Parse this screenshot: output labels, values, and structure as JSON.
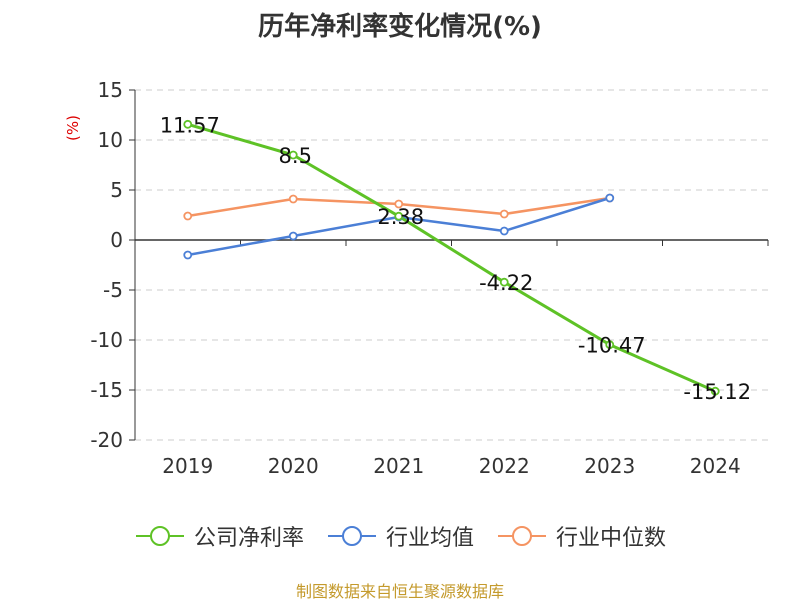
{
  "title": "历年净利率变化情况(%)",
  "source": "制图数据来自恒生聚源数据库",
  "colors": {
    "company": "#5ec226",
    "industry_avg": "#4b7fd6",
    "industry_median": "#f59462",
    "grid": "#cccccc",
    "axis": "#333333"
  },
  "chart_data": {
    "type": "line",
    "title": "历年净利率变化情况(%)",
    "ylabel": "(%)",
    "xlabel": "",
    "categories": [
      "2019",
      "2020",
      "2021",
      "2022",
      "2023",
      "2024"
    ],
    "ylim": [
      -20,
      15
    ],
    "yticks": [
      15,
      10,
      5,
      0,
      -5,
      -10,
      -15,
      -20
    ],
    "grid": true,
    "legend_position": "bottom",
    "series": [
      {
        "name": "公司净利率",
        "values": [
          11.57,
          8.5,
          2.38,
          -4.22,
          -10.47,
          -15.12
        ],
        "labels": [
          "11.57",
          "8.5",
          "2.38",
          "-4.22",
          "-10.47",
          "-15.12"
        ]
      },
      {
        "name": "行业均值",
        "values": [
          -1.5,
          0.4,
          2.3,
          0.9,
          4.2,
          null
        ]
      },
      {
        "name": "行业中位数",
        "values": [
          2.4,
          4.1,
          3.6,
          2.6,
          4.2,
          null
        ]
      }
    ]
  }
}
